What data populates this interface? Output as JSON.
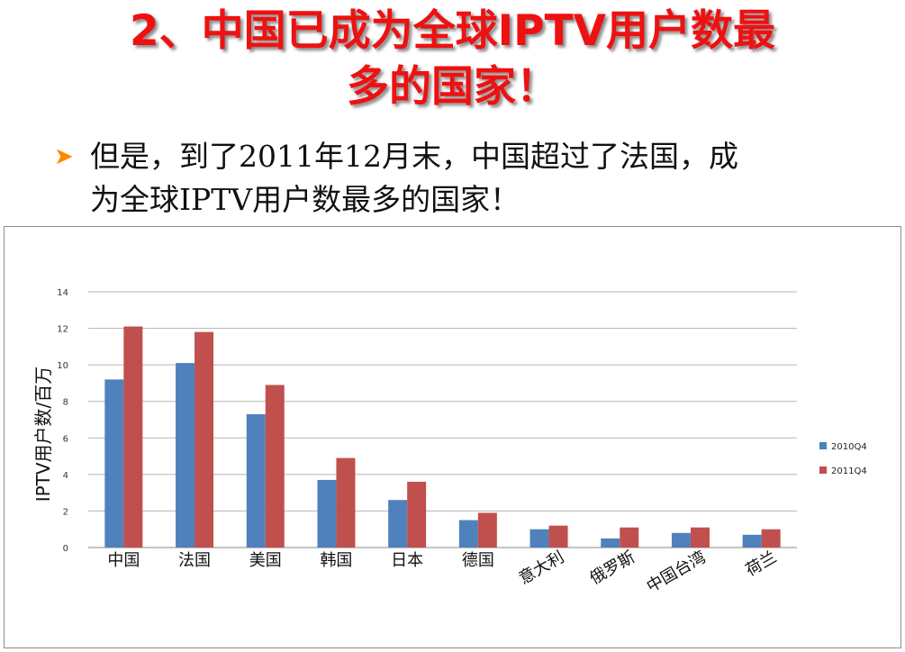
{
  "title": {
    "line1": "2、中国已成为全球IPTV用户数最",
    "line2": "多的国家！"
  },
  "bullet": {
    "arrow_icon": "orange-arrow-bullet",
    "line1": "但是，到了2011年12月末，中国超过了法国，成",
    "line2": "为全球IPTV用户数最多的国家！"
  },
  "chart_data": {
    "type": "bar",
    "ylabel": "IPTV用户数/百万",
    "ylim": [
      0,
      14
    ],
    "yticks": [
      "0",
      "2",
      "4",
      "6",
      "8",
      "10",
      "12",
      "14"
    ],
    "grid": true,
    "legend_position": "right",
    "categories": [
      "中国",
      "法国",
      "美国",
      "韩国",
      "日本",
      "德国",
      "意大利",
      "俄罗斯",
      "中国台湾",
      "荷兰"
    ],
    "series": [
      {
        "name": "2010Q4",
        "color": "#4f81bd",
        "values": [
          9.2,
          10.1,
          7.3,
          3.7,
          2.6,
          1.5,
          1.0,
          0.5,
          0.8,
          0.7
        ]
      },
      {
        "name": "2011Q4",
        "color": "#c0504d",
        "values": [
          12.1,
          11.8,
          8.9,
          4.9,
          3.6,
          1.9,
          1.2,
          1.1,
          1.1,
          1.0
        ]
      }
    ]
  }
}
